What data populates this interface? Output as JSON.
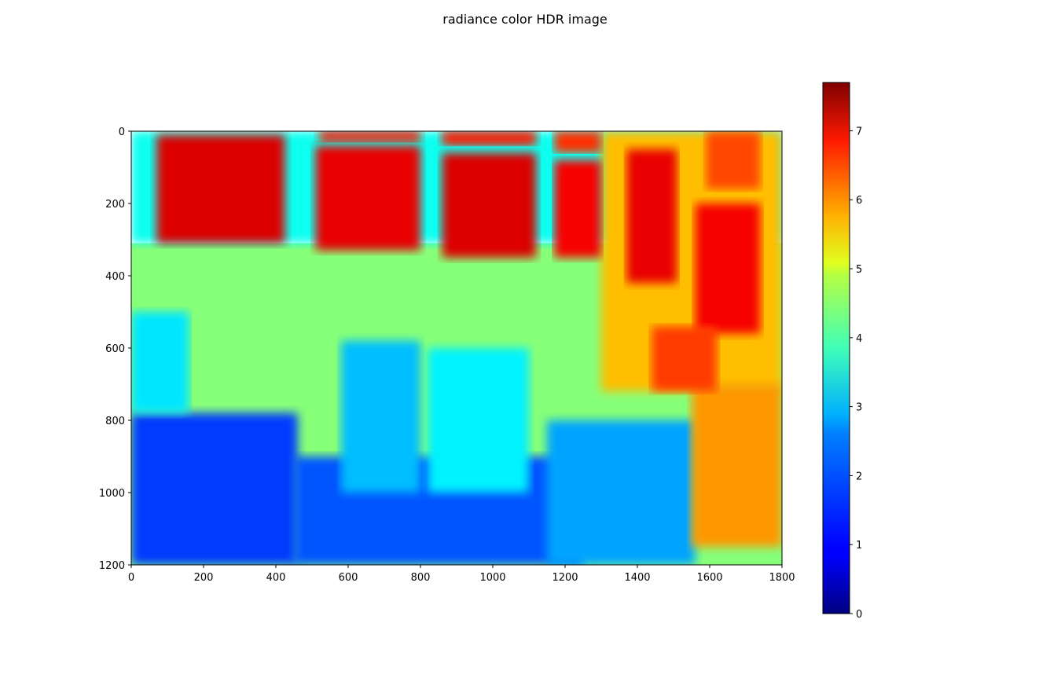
{
  "chart_data": {
    "type": "heatmap",
    "title": "radiance color HDR image",
    "xlabel": "",
    "ylabel": "",
    "xlim": [
      0,
      1800
    ],
    "ylim": [
      1200,
      0
    ],
    "x_ticks": [
      0,
      200,
      400,
      600,
      800,
      1000,
      1200,
      1400,
      1600,
      1800
    ],
    "y_ticks": [
      0,
      200,
      400,
      600,
      800,
      1000,
      1200
    ],
    "colormap": "jet",
    "colorbar": {
      "range": [
        0,
        7.7
      ],
      "ticks": [
        0,
        1,
        2,
        3,
        4,
        5,
        6,
        7
      ],
      "placement": "right"
    },
    "grid": false,
    "regions": [
      {
        "x": [
          0,
          1800
        ],
        "y": [
          310,
          1200
        ],
        "value": 3.9
      },
      {
        "x": [
          0,
          1800
        ],
        "y": [
          0,
          310
        ],
        "value": 3.0
      },
      {
        "x": [
          1300,
          1800
        ],
        "y": [
          0,
          720
        ],
        "value": 5.3
      },
      {
        "x": [
          70,
          425
        ],
        "y": [
          10,
          310
        ],
        "value": 7.0
      },
      {
        "x": [
          510,
          800
        ],
        "y": [
          40,
          330
        ],
        "value": 6.9
      },
      {
        "x": [
          860,
          1120
        ],
        "y": [
          60,
          350
        ],
        "value": 7.0
      },
      {
        "x": [
          1170,
          1300
        ],
        "y": [
          80,
          350
        ],
        "value": 6.8
      },
      {
        "x": [
          520,
          800
        ],
        "y": [
          0,
          30
        ],
        "value": 6.6
      },
      {
        "x": [
          860,
          1120
        ],
        "y": [
          0,
          40
        ],
        "value": 6.6
      },
      {
        "x": [
          1170,
          1300
        ],
        "y": [
          0,
          60
        ],
        "value": 6.4
      },
      {
        "x": [
          1370,
          1510
        ],
        "y": [
          50,
          420
        ],
        "value": 6.9
      },
      {
        "x": [
          1560,
          1740
        ],
        "y": [
          200,
          560
        ],
        "value": 6.8
      },
      {
        "x": [
          1590,
          1740
        ],
        "y": [
          0,
          160
        ],
        "value": 6.2
      },
      {
        "x": [
          0,
          460
        ],
        "y": [
          780,
          1200
        ],
        "value": 1.4
      },
      {
        "x": [
          450,
          1250
        ],
        "y": [
          900,
          1200
        ],
        "value": 1.6
      },
      {
        "x": [
          580,
          800
        ],
        "y": [
          580,
          1000
        ],
        "value": 2.4
      },
      {
        "x": [
          820,
          1100
        ],
        "y": [
          600,
          1000
        ],
        "value": 2.8
      },
      {
        "x": [
          1150,
          1560
        ],
        "y": [
          800,
          1200
        ],
        "value": 2.2
      },
      {
        "x": [
          1550,
          1800
        ],
        "y": [
          700,
          1150
        ],
        "value": 5.6
      },
      {
        "x": [
          1440,
          1620
        ],
        "y": [
          540,
          720
        ],
        "value": 6.3
      },
      {
        "x": [
          0,
          160
        ],
        "y": [
          500,
          780
        ],
        "value": 2.7
      }
    ]
  }
}
